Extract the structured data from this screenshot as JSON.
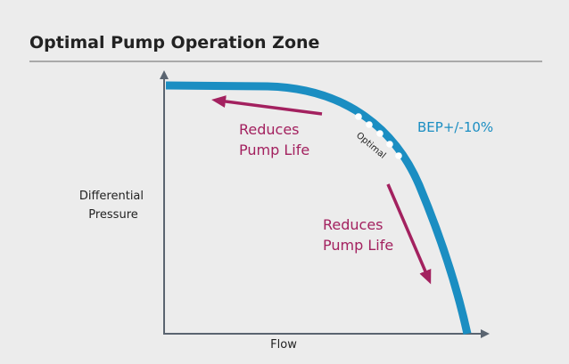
{
  "header": {
    "title": "Optimal Pump Operation Zone"
  },
  "diagram": {
    "y_axis_label": [
      "Differential",
      "Pressure"
    ],
    "x_axis_label": "Flow",
    "zone_label": "BEP+/-10%",
    "curve_label": "Optimal",
    "annotations": [
      {
        "lines": [
          "Reduces",
          "Pump Life"
        ]
      },
      {
        "lines": [
          "Reduces",
          "Pump Life"
        ]
      }
    ]
  }
}
